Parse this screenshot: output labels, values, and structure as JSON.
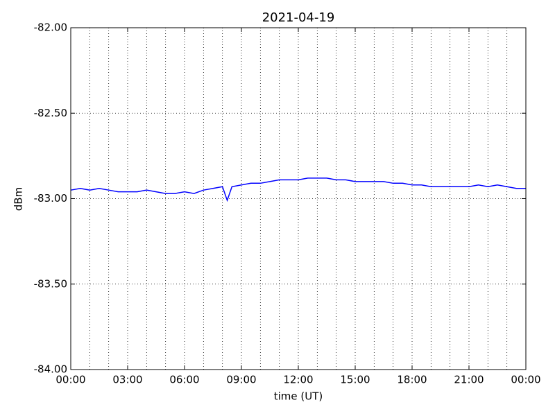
{
  "chart_data": {
    "type": "line",
    "title": "2021-04-19",
    "xlabel": "time (UT)",
    "ylabel": "dBm",
    "x": [
      0,
      0.5,
      1,
      1.5,
      2,
      2.5,
      3,
      3.5,
      4,
      4.5,
      5,
      5.5,
      6,
      6.5,
      7,
      7.5,
      8,
      8.25,
      8.5,
      9,
      9.5,
      10,
      10.5,
      11,
      11.5,
      12,
      12.5,
      13,
      13.5,
      14,
      14.5,
      15,
      15.5,
      16,
      16.5,
      17,
      17.5,
      18,
      18.5,
      19,
      19.5,
      20,
      20.5,
      21,
      21.5,
      22,
      22.5,
      23,
      23.5,
      24
    ],
    "series": [
      {
        "color": "#0000ff",
        "values": [
          -82.95,
          -82.94,
          -82.95,
          -82.94,
          -82.95,
          -82.96,
          -82.96,
          -82.96,
          -82.95,
          -82.96,
          -82.97,
          -82.97,
          -82.96,
          -82.97,
          -82.95,
          -82.94,
          -82.93,
          -83.01,
          -82.93,
          -82.92,
          -82.91,
          -82.91,
          -82.9,
          -82.89,
          -82.89,
          -82.89,
          -82.88,
          -82.88,
          -82.88,
          -82.89,
          -82.89,
          -82.9,
          -82.9,
          -82.9,
          -82.9,
          -82.91,
          -82.91,
          -82.92,
          -82.92,
          -82.93,
          -82.93,
          -82.93,
          -82.93,
          -82.93,
          -82.92,
          -82.93,
          -82.92,
          -82.93,
          -82.94,
          -82.94
        ]
      }
    ],
    "xlim": [
      0,
      24
    ],
    "xticks": [
      {
        "value": 0,
        "label": "00:00"
      },
      {
        "value": 3,
        "label": "03:00"
      },
      {
        "value": 6,
        "label": "06:00"
      },
      {
        "value": 9,
        "label": "09:00"
      },
      {
        "value": 12,
        "label": "12:00"
      },
      {
        "value": 15,
        "label": "15:00"
      },
      {
        "value": 18,
        "label": "18:00"
      },
      {
        "value": 21,
        "label": "21:00"
      },
      {
        "value": 24,
        "label": "00:00"
      }
    ],
    "xminorticks": [
      1,
      2,
      4,
      5,
      7,
      8,
      10,
      11,
      13,
      14,
      16,
      17,
      19,
      20,
      22,
      23
    ],
    "ylim": [
      -84,
      -82
    ],
    "yticks": [
      {
        "value": -84,
        "label": "-84.00"
      },
      {
        "value": -83.5,
        "label": "-83.50"
      },
      {
        "value": -83,
        "label": "-83.00"
      },
      {
        "value": -82.5,
        "label": "-82.50"
      },
      {
        "value": -82,
        "label": "-82.00"
      }
    ],
    "grid": true
  }
}
